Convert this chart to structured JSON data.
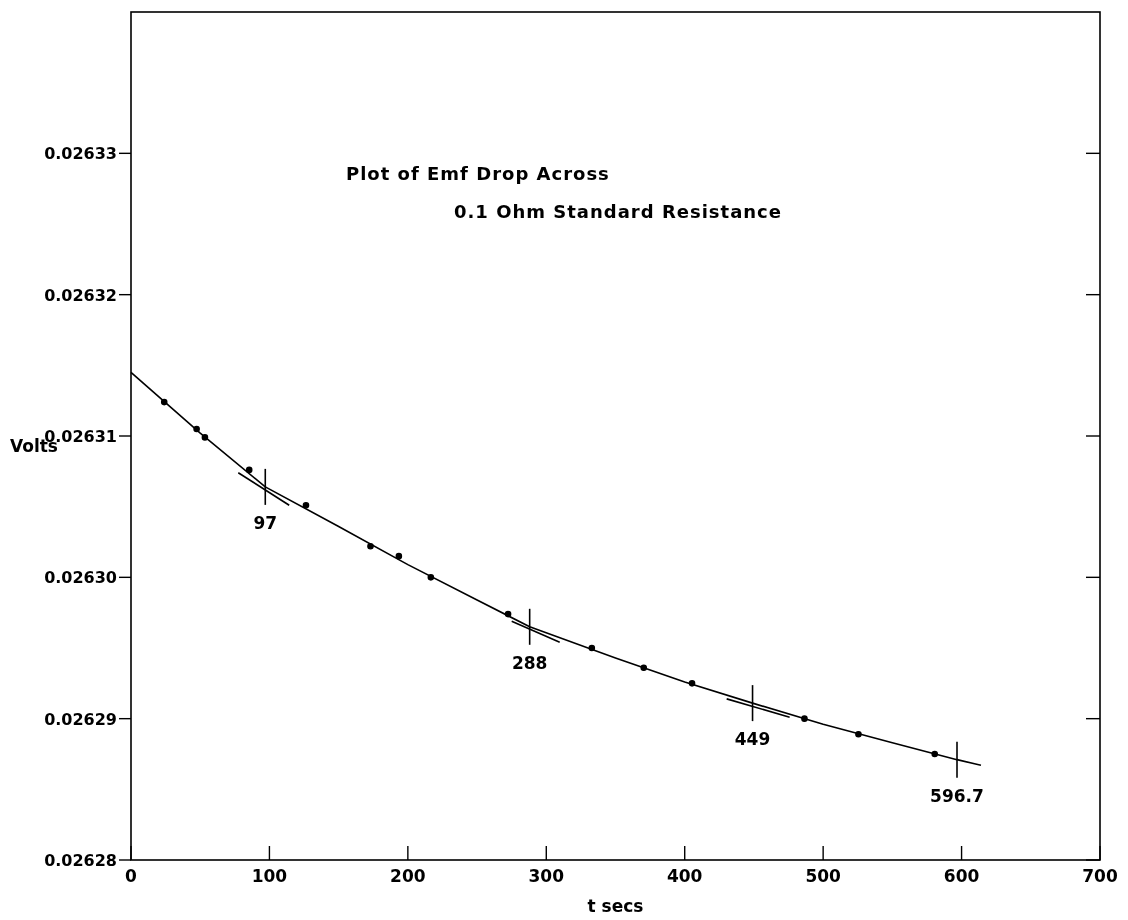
{
  "chart_data": {
    "type": "scatter",
    "title": "Plot of Emf Drop Across",
    "subtitle": "0.1 Ohm Standard Resistance",
    "xlabel": "t secs",
    "ylabel": "Volts",
    "xlim": [
      0,
      700
    ],
    "xticks": [
      0,
      100,
      200,
      300,
      400,
      500,
      600,
      700
    ],
    "ylim": [
      0.02628,
      0.02634
    ],
    "yticks": [
      {
        "value": 0.02628,
        "label": "0.02628"
      },
      {
        "value": 0.02629,
        "label": "0.02629"
      },
      {
        "value": 0.0263,
        "label": "0.02630"
      },
      {
        "value": 0.02631,
        "label": "0.02631"
      },
      {
        "value": 0.02632,
        "label": "0.02632"
      },
      {
        "value": 0.02633,
        "label": "0.02633"
      }
    ],
    "grid": false,
    "series": [
      {
        "type": "line",
        "color": "#000000",
        "marker": "none",
        "x": [
          0,
          50,
          97,
          150,
          200,
          250,
          288,
          350,
          400,
          449,
          500,
          550,
          596.7,
          614
        ],
        "values": [
          0.0263145,
          0.0263102,
          0.0263064,
          0.0263036,
          0.0263009,
          0.0262984,
          0.0262965,
          0.0262943,
          0.0262926,
          0.0262911,
          0.0262896,
          0.0262883,
          0.0262871,
          0.0262867
        ]
      },
      {
        "type": "line",
        "color": "#000000",
        "marker": "none",
        "x": [
          77.5,
          114.3
        ],
        "values": [
          0.0263074,
          0.0263051
        ]
      },
      {
        "type": "line",
        "color": "#000000",
        "marker": "none",
        "x": [
          275,
          309.7
        ],
        "values": [
          0.0262969,
          0.0262954
        ]
      },
      {
        "type": "line",
        "color": "#000000",
        "marker": "none",
        "x": [
          430.3,
          475.8
        ],
        "values": [
          0.0262914,
          0.0262901
        ]
      },
      {
        "color": "#000000",
        "marker": "circle",
        "x": [
          24,
          53.4,
          85.4,
          126.4,
          173,
          216.6,
          272.4,
          332.9,
          405.3,
          486.5,
          580.6
        ],
        "values": [
          0.0263124,
          0.0263099,
          0.0263076,
          0.0263051,
          0.0263022,
          0.0263,
          0.0262974,
          0.026295,
          0.0262925,
          0.02629,
          0.0262875
        ]
      },
      {
        "color": "#000000",
        "marker": "circle",
        "x": [
          47.4,
          193.5,
          370.4,
          525.5
        ],
        "values": [
          0.0263105,
          0.0263015,
          0.0262936,
          0.0262889
        ]
      }
    ],
    "annotations": [
      {
        "text": "97",
        "x": 97,
        "y": 0.0263064
      },
      {
        "text": "288",
        "x": 288,
        "y": 0.0262965
      },
      {
        "text": "449",
        "x": 449,
        "y": 0.0262911
      },
      {
        "text": "596.7",
        "x": 596.7,
        "y": 0.0262871
      }
    ]
  }
}
